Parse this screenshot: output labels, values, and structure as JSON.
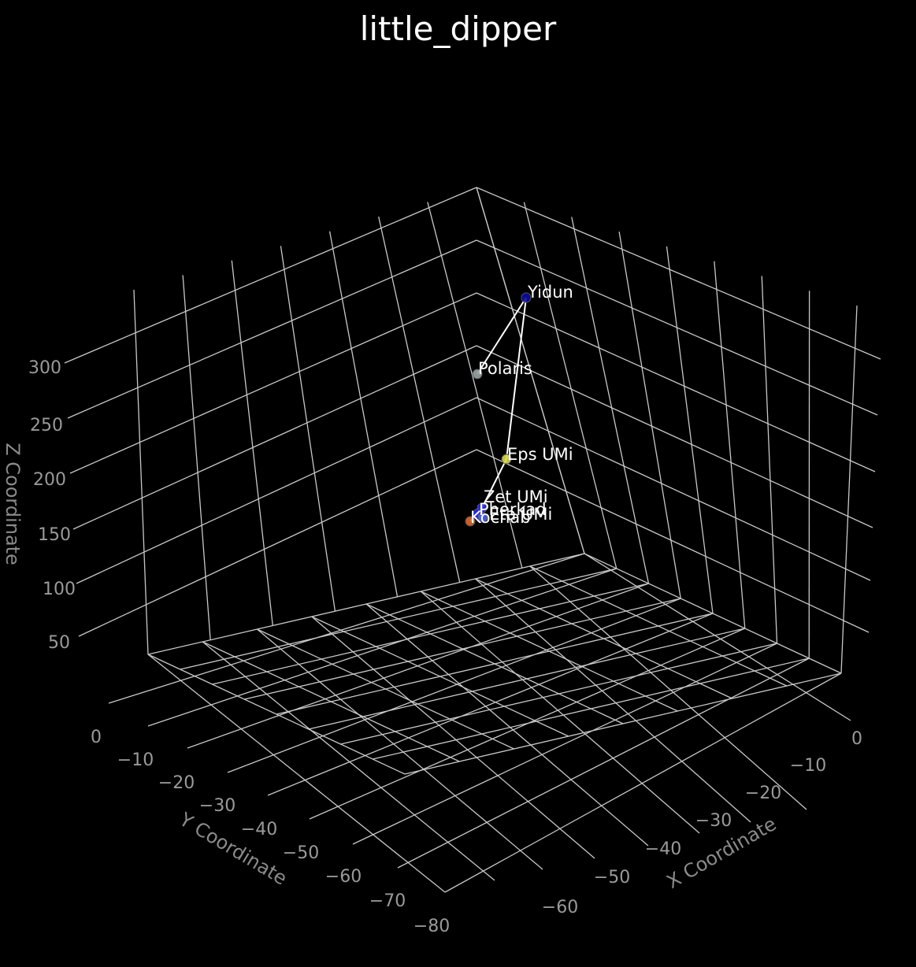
{
  "chart_data": {
    "type": "scatter3d",
    "title": "little_dipper",
    "xlabel": "X Coordinate",
    "ylabel": "Y Coordinate",
    "zlabel": "Z Coordinate",
    "x_ticks": [
      "0",
      "−10",
      "−20",
      "−30",
      "−40",
      "−50",
      "−60"
    ],
    "y_ticks": [
      "0",
      "−10",
      "−20",
      "−30",
      "−40",
      "−50",
      "−60",
      "−70",
      "−80"
    ],
    "z_ticks": [
      "50",
      "100",
      "150",
      "200",
      "250",
      "300"
    ],
    "colors": {
      "background": "#000000",
      "grid": "#c8c8c8",
      "line": "#ffffff",
      "tick": "#9a9a9a"
    },
    "stars": [
      {
        "name": "Yidun",
        "color": "#0a0aa0"
      },
      {
        "name": "Polaris",
        "color": "#9aa6a4"
      },
      {
        "name": "Eps UMi",
        "color": "#d8d850"
      },
      {
        "name": "Zet UMi",
        "color": "#3030e0"
      },
      {
        "name": "Pherkad",
        "color": "#2a2af0"
      },
      {
        "name": "Eta UMi",
        "color": "#5060f0"
      },
      {
        "name": "Kochab",
        "color": "#d86a30"
      }
    ],
    "connections": [
      [
        "Polaris",
        "Yidun"
      ],
      [
        "Yidun",
        "Eps UMi"
      ],
      [
        "Eps UMi",
        "Zet UMi"
      ],
      [
        "Zet UMi",
        "Pherkad"
      ],
      [
        "Pherkad",
        "Kochab"
      ]
    ]
  }
}
